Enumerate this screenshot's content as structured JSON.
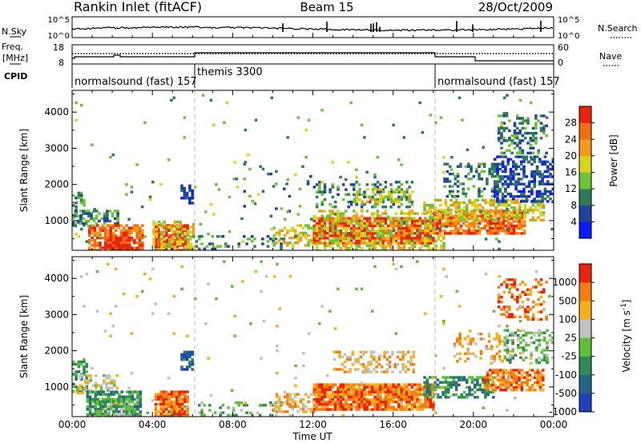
{
  "header": {
    "station": "Rankin Inlet (fitACF)",
    "beam": "Beam 15",
    "date": "28/Oct/2009"
  },
  "nsky_panel": {
    "left_label": "N.Sky",
    "left_ticks": [
      "10^5",
      "10^0"
    ],
    "right_label": "N.Search",
    "right_ticks": [
      "10^5",
      "10^0"
    ]
  },
  "freq_panel": {
    "label_line1": "Freq.",
    "label_line2": "[MHz]",
    "left_ticks": [
      "18",
      "8"
    ],
    "right_label": "Nave",
    "right_ticks": [
      "60",
      "0"
    ]
  },
  "cpid": {
    "label": "CPID",
    "segments": [
      {
        "name": "normalsound (fast) 157",
        "start_hour": 0,
        "end_hour": 6
      },
      {
        "name": "themis 3300",
        "start_hour": 6,
        "end_hour": 18
      },
      {
        "name": "normalsound (fast) 157",
        "start_hour": 18,
        "end_hour": 24
      }
    ]
  },
  "time_axis": {
    "label": "Time UT",
    "ticks": [
      "00:00",
      "04:00",
      "08:00",
      "12:00",
      "16:00",
      "20:00",
      "00:00"
    ]
  },
  "chart_data": [
    {
      "type": "heatmap",
      "ylabel": "Slant Range [km]",
      "yticks": [
        1000,
        2000,
        3000,
        4000
      ],
      "ylim": [
        180,
        4600
      ],
      "xlim_hours": [
        0,
        24
      ],
      "colorbar": {
        "label": "Power [dB]",
        "ticks": [
          "4",
          "8",
          "12",
          "16",
          "20",
          "24",
          "28"
        ],
        "colors": [
          "#0a1bff",
          "#20429a",
          "#2f7a58",
          "#6cc33a",
          "#d9d31e",
          "#f39a1a",
          "#f26d12",
          "#e8240e"
        ]
      },
      "regions": [
        {
          "t0": 0.0,
          "t1": 0.6,
          "r0": 900,
          "r1": 1800,
          "level": 2,
          "density": 0.45
        },
        {
          "t0": 0.1,
          "t1": 2.3,
          "r0": 850,
          "r1": 1300,
          "level": 2,
          "density": 0.5
        },
        {
          "t0": 0.8,
          "t1": 3.5,
          "r0": 200,
          "r1": 900,
          "level": 6,
          "density": 0.75
        },
        {
          "t0": 1.6,
          "t1": 2.9,
          "r0": 200,
          "r1": 560,
          "level": 7,
          "density": 0.85
        },
        {
          "t0": 4.1,
          "t1": 5.8,
          "r0": 200,
          "r1": 900,
          "level": 7,
          "density": 0.9
        },
        {
          "t0": 4.0,
          "t1": 6.0,
          "r0": 200,
          "r1": 1000,
          "level": 4,
          "density": 0.5
        },
        {
          "t0": 5.4,
          "t1": 6.0,
          "r0": 1500,
          "r1": 2000,
          "level": 1,
          "density": 0.7
        },
        {
          "t0": 6.0,
          "t1": 10.5,
          "r0": 200,
          "r1": 600,
          "level": 2,
          "density": 0.25
        },
        {
          "t0": 10.0,
          "t1": 12.0,
          "r0": 300,
          "r1": 900,
          "level": 4,
          "density": 0.45
        },
        {
          "t0": 12.0,
          "t1": 18.0,
          "r0": 400,
          "r1": 1100,
          "level": 7,
          "density": 0.85
        },
        {
          "t0": 12.0,
          "t1": 18.5,
          "r0": 200,
          "r1": 1300,
          "level": 4,
          "density": 0.45
        },
        {
          "t0": 18.0,
          "t1": 22.5,
          "r0": 650,
          "r1": 1300,
          "level": 6,
          "density": 0.75
        },
        {
          "t0": 17.5,
          "t1": 23.5,
          "r0": 1000,
          "r1": 1600,
          "level": 4,
          "density": 0.55
        },
        {
          "t0": 12.0,
          "t1": 17.0,
          "r0": 1400,
          "r1": 2100,
          "level": 2,
          "density": 0.3
        },
        {
          "t0": 14.0,
          "t1": 17.0,
          "r0": 1500,
          "r1": 1900,
          "level": 4,
          "density": 0.4
        },
        {
          "t0": 18.5,
          "t1": 21.5,
          "r0": 1700,
          "r1": 2600,
          "level": 2,
          "density": 0.3
        },
        {
          "t0": 21.0,
          "t1": 24.0,
          "r0": 1500,
          "r1": 2800,
          "level": 1,
          "density": 0.45
        },
        {
          "t0": 21.2,
          "t1": 23.6,
          "r0": 2900,
          "r1": 4000,
          "level": 2,
          "density": 0.35
        },
        {
          "t0": 8.0,
          "t1": 12.0,
          "r0": 1000,
          "r1": 2600,
          "level": 2,
          "density": 0.05
        },
        {
          "t0": 0.0,
          "t1": 24.0,
          "r0": 200,
          "r1": 4500,
          "level": 3,
          "density": 0.012
        }
      ]
    },
    {
      "type": "heatmap",
      "ylabel": "Slant Range [km]",
      "yticks": [
        1000,
        2000,
        3000,
        4000
      ],
      "ylim": [
        180,
        4600
      ],
      "xlim_hours": [
        0,
        24
      ],
      "colorbar": {
        "label": "Velocity [m s^-1]",
        "ticks": [
          "1000",
          "500",
          "100",
          "25",
          "-25",
          "-100",
          "-500",
          "-1000"
        ],
        "colors": [
          "#1f3fbe",
          "#26658a",
          "#2f8a55",
          "#5fbf3a",
          "#c0c0c0",
          "#f5b01f",
          "#f47d12",
          "#e8240e"
        ]
      },
      "regions": [
        {
          "t0": 0.0,
          "t1": 0.7,
          "r0": 900,
          "r1": 1800,
          "level": 2,
          "density": 0.45
        },
        {
          "t0": 0.2,
          "t1": 2.3,
          "r0": 850,
          "r1": 1350,
          "level": 4,
          "density": 0.45
        },
        {
          "t0": 0.7,
          "t1": 3.4,
          "r0": 200,
          "r1": 900,
          "level": 2,
          "density": 0.7
        },
        {
          "t0": 1.2,
          "t1": 3.0,
          "r0": 200,
          "r1": 700,
          "level": 3,
          "density": 0.6
        },
        {
          "t0": 4.1,
          "t1": 5.8,
          "r0": 200,
          "r1": 900,
          "level": 6,
          "density": 0.9
        },
        {
          "t0": 5.4,
          "t1": 6.0,
          "r0": 1500,
          "r1": 2000,
          "level": 1,
          "density": 0.7
        },
        {
          "t0": 6.0,
          "t1": 10.5,
          "r0": 200,
          "r1": 600,
          "level": 3,
          "density": 0.25
        },
        {
          "t0": 12.0,
          "t1": 18.0,
          "r0": 400,
          "r1": 1100,
          "level": 6,
          "density": 0.9
        },
        {
          "t0": 10.0,
          "t1": 12.0,
          "r0": 300,
          "r1": 900,
          "level": 5,
          "density": 0.4
        },
        {
          "t0": 17.5,
          "t1": 21.0,
          "r0": 700,
          "r1": 1300,
          "level": 2,
          "density": 0.6
        },
        {
          "t0": 20.5,
          "t1": 23.5,
          "r0": 900,
          "r1": 1500,
          "level": 6,
          "density": 0.65
        },
        {
          "t0": 13.0,
          "t1": 17.0,
          "r0": 1400,
          "r1": 2000,
          "level": 5,
          "density": 0.35
        },
        {
          "t0": 19.0,
          "t1": 22.0,
          "r0": 1700,
          "r1": 2500,
          "level": 5,
          "density": 0.3
        },
        {
          "t0": 21.5,
          "t1": 24.0,
          "r0": 1700,
          "r1": 2600,
          "level": 3,
          "density": 0.4
        },
        {
          "t0": 21.2,
          "t1": 23.6,
          "r0": 2900,
          "r1": 4000,
          "level": 6,
          "density": 0.3
        },
        {
          "t0": 0.0,
          "t1": 24.0,
          "r0": 200,
          "r1": 4500,
          "level": 4,
          "density": 0.012
        }
      ]
    }
  ]
}
